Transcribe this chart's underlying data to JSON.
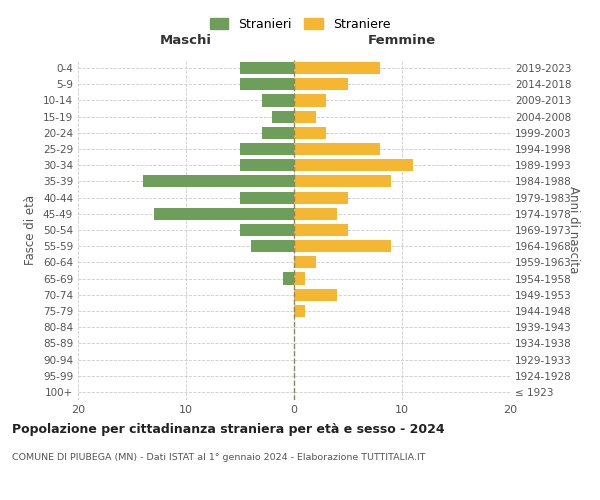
{
  "age_groups": [
    "100+",
    "95-99",
    "90-94",
    "85-89",
    "80-84",
    "75-79",
    "70-74",
    "65-69",
    "60-64",
    "55-59",
    "50-54",
    "45-49",
    "40-44",
    "35-39",
    "30-34",
    "25-29",
    "20-24",
    "15-19",
    "10-14",
    "5-9",
    "0-4"
  ],
  "birth_years": [
    "≤ 1923",
    "1924-1928",
    "1929-1933",
    "1934-1938",
    "1939-1943",
    "1944-1948",
    "1949-1953",
    "1954-1958",
    "1959-1963",
    "1964-1968",
    "1969-1973",
    "1974-1978",
    "1979-1983",
    "1984-1988",
    "1989-1993",
    "1994-1998",
    "1999-2003",
    "2004-2008",
    "2009-2013",
    "2014-2018",
    "2019-2023"
  ],
  "maschi": [
    0,
    0,
    0,
    0,
    0,
    0,
    0,
    1,
    0,
    4,
    5,
    13,
    5,
    14,
    5,
    5,
    3,
    2,
    3,
    5,
    5
  ],
  "femmine": [
    0,
    0,
    0,
    0,
    0,
    1,
    4,
    1,
    2,
    9,
    5,
    4,
    5,
    9,
    11,
    8,
    3,
    2,
    3,
    5,
    8
  ],
  "maschi_color": "#6d9e5a",
  "femmine_color": "#f5b731",
  "background_color": "#ffffff",
  "grid_color": "#cccccc",
  "title": "Popolazione per cittadinanza straniera per età e sesso - 2024",
  "subtitle": "COMUNE DI PIUBEGA (MN) - Dati ISTAT al 1° gennaio 2024 - Elaborazione TUTTITALIA.IT",
  "xlabel_left": "Maschi",
  "xlabel_right": "Femmine",
  "ylabel_left": "Fasce di età",
  "ylabel_right": "Anni di nascita",
  "legend_stranieri": "Stranieri",
  "legend_straniere": "Straniere",
  "xlim": 20
}
